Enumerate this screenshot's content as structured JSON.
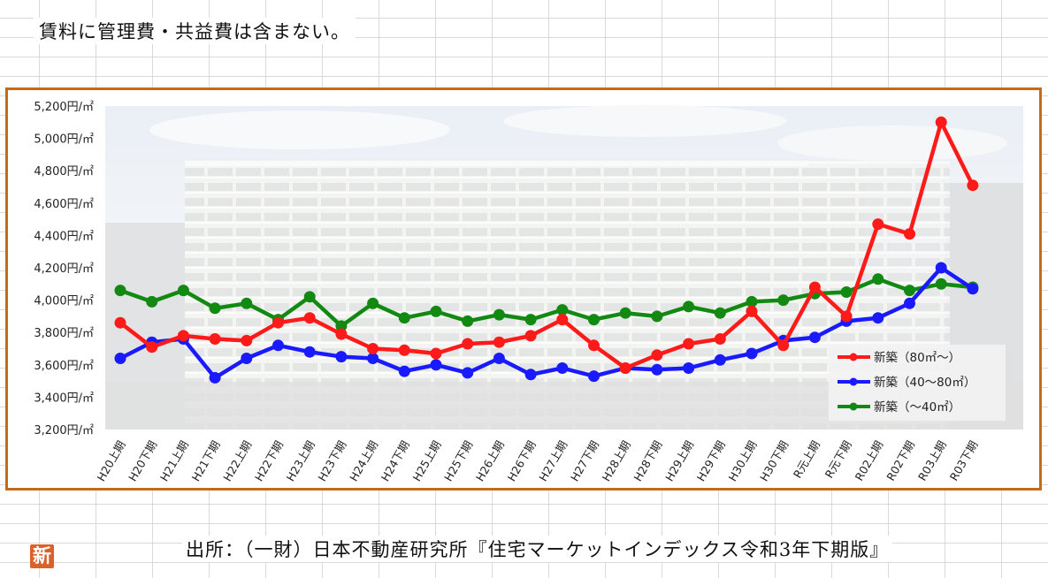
{
  "note": "賃料に管理費・共益費は含まない。",
  "source": "出所：（一財）日本不動産研究所『住宅マーケットインデックス令和3年下期版』",
  "logo_text": "新",
  "colors": {
    "frame": "#c46a1b",
    "series_80_plus": "#ff1a1a",
    "series_40_80": "#1a1aff",
    "series_under_40": "#128a12"
  },
  "chart_data": {
    "type": "line",
    "title": "",
    "xlabel": "",
    "ylabel": "",
    "ylim": [
      3200,
      5200
    ],
    "yticks": [
      3200,
      3400,
      3600,
      3800,
      4000,
      4200,
      4400,
      4600,
      4800,
      5000,
      5200
    ],
    "ytick_labels": [
      "3,200円/㎡",
      "3,400円/㎡",
      "3,600円/㎡",
      "3,800円/㎡",
      "4,000円/㎡",
      "4,200円/㎡",
      "4,400円/㎡",
      "4,600円/㎡",
      "4,800円/㎡",
      "5,000円/㎡",
      "5,200円/㎡"
    ],
    "categories": [
      "H20上期",
      "H20下期",
      "H21上期",
      "H21下期",
      "H22上期",
      "H22下期",
      "H23上期",
      "H23下期",
      "H24上期",
      "H24下期",
      "H25上期",
      "H25下期",
      "H26上期",
      "H26下期",
      "H27上期",
      "H27下期",
      "H28上期",
      "H28下期",
      "H29上期",
      "H29下期",
      "H30上期",
      "H30下期",
      "R元上期",
      "R元下期",
      "R02上期",
      "R02下期",
      "R03上期",
      "R03下期"
    ],
    "legend_position": "right",
    "grid": false,
    "series": [
      {
        "name": "新築（80㎡～）",
        "color": "#ff1a1a",
        "values": [
          3860,
          3710,
          3780,
          3760,
          3750,
          3860,
          3890,
          3790,
          3700,
          3690,
          3670,
          3730,
          3740,
          3780,
          3880,
          3720,
          3580,
          3660,
          3730,
          3760,
          3930,
          3720,
          4080,
          3900,
          4470,
          4410,
          5100,
          4710
        ]
      },
      {
        "name": "新築（40～80㎡）",
        "color": "#1a1aff",
        "values": [
          3640,
          3740,
          3760,
          3520,
          3640,
          3720,
          3680,
          3650,
          3640,
          3560,
          3600,
          3550,
          3640,
          3540,
          3580,
          3530,
          3580,
          3570,
          3580,
          3630,
          3670,
          3750,
          3770,
          3870,
          3890,
          3980,
          4200,
          4070
        ]
      },
      {
        "name": "新築（～40㎡）",
        "color": "#128a12",
        "values": [
          4060,
          3990,
          4060,
          3950,
          3980,
          3880,
          4020,
          3840,
          3980,
          3890,
          3930,
          3870,
          3910,
          3880,
          3940,
          3880,
          3920,
          3900,
          3960,
          3920,
          3990,
          4000,
          4040,
          4050,
          4130,
          4060,
          4100,
          4080
        ]
      }
    ]
  }
}
